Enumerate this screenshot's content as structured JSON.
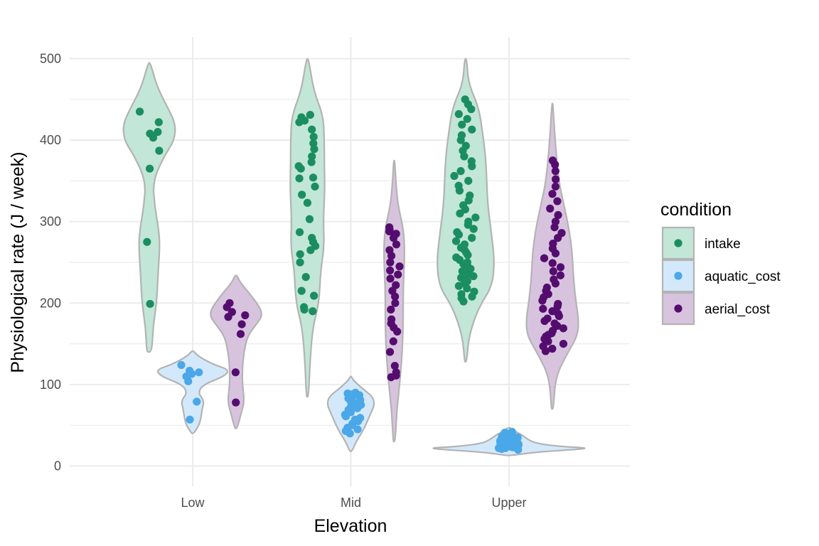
{
  "chart_data": {
    "type": "violin",
    "xlabel": "Elevation",
    "ylabel": "Physiological rate (J / week)",
    "categories": [
      "Low",
      "Mid",
      "Upper"
    ],
    "ylim": [
      0,
      525
    ],
    "yticks": [
      0,
      100,
      200,
      300,
      400,
      500
    ],
    "grid": true,
    "legend": {
      "title": "condition",
      "position": "right",
      "entries": [
        "intake",
        "aquatic_cost",
        "aerial_cost"
      ]
    },
    "colors": {
      "intake": "#1b8e61",
      "aquatic_cost": "#4aa7e8",
      "aerial_cost": "#540d6e",
      "intake_fill": "#c2e6d7",
      "aquatic_cost_fill": "#d3e9fb",
      "aerial_cost_fill": "#d8c3df",
      "outline": "#b3b3b3"
    },
    "series": [
      {
        "name": "intake",
        "groups": [
          {
            "category": "Low",
            "range": [
              140,
              495
            ],
            "density": [
              [
                140,
                0.05
              ],
              [
                170,
                0.07
              ],
              [
                200,
                0.14
              ],
              [
                240,
                0.17
              ],
              [
                270,
                0.2
              ],
              [
                290,
                0.18
              ],
              [
                320,
                0.1
              ],
              [
                350,
                0.07
              ],
              [
                380,
                0.28
              ],
              [
                400,
                0.48
              ],
              [
                420,
                0.5
              ],
              [
                440,
                0.35
              ],
              [
                465,
                0.15
              ],
              [
                495,
                0.02
              ]
            ],
            "points": [
              199,
              275,
              365,
              387,
              403,
              408,
              410,
              422,
              435
            ]
          },
          {
            "category": "Mid",
            "range": [
              85,
              500
            ],
            "density": [
              [
                85,
                0.02
              ],
              [
                130,
                0.05
              ],
              [
                170,
                0.1
              ],
              [
                200,
                0.22
              ],
              [
                240,
                0.25
              ],
              [
                270,
                0.32
              ],
              [
                300,
                0.3
              ],
              [
                340,
                0.33
              ],
              [
                370,
                0.32
              ],
              [
                400,
                0.32
              ],
              [
                430,
                0.3
              ],
              [
                460,
                0.12
              ],
              [
                500,
                0.02
              ]
            ],
            "points": [
              190,
              192,
              195,
              209,
              215,
              232,
              250,
              260,
              265,
              270,
              275,
              280,
              287,
              303,
              323,
              333,
              343,
              353,
              354,
              365,
              368,
              373,
              380,
              389,
              396,
              404,
              413,
              422,
              424,
              428,
              431
            ]
          },
          {
            "category": "Upper",
            "range": [
              128,
              500
            ],
            "density": [
              [
                128,
                0.02
              ],
              [
                160,
                0.06
              ],
              [
                195,
                0.25
              ],
              [
                220,
                0.5
              ],
              [
                250,
                0.55
              ],
              [
                280,
                0.5
              ],
              [
                320,
                0.42
              ],
              [
                350,
                0.4
              ],
              [
                380,
                0.38
              ],
              [
                410,
                0.32
              ],
              [
                440,
                0.25
              ],
              [
                470,
                0.05
              ],
              [
                500,
                0.02
              ]
            ],
            "points": [
              202,
              206,
              208,
              211,
              214,
              218,
              221,
              224,
              227,
              229,
              231,
              233,
              236,
              239,
              242,
              245,
              248,
              250,
              253,
              256,
              259,
              262,
              265,
              268,
              272,
              276,
              280,
              284,
              287,
              291,
              296,
              300,
              305,
              310,
              315,
              320,
              326,
              332,
              338,
              344,
              350,
              356,
              362,
              368,
              374,
              380,
              387,
              393,
              400,
              406,
              413,
              419,
              426,
              432,
              438,
              444,
              450
            ]
          }
        ]
      },
      {
        "name": "aquatic_cost",
        "groups": [
          {
            "category": "Low",
            "range": [
              40,
              141
            ],
            "density": [
              [
                40,
                0.02
              ],
              [
                50,
                0.12
              ],
              [
                60,
                0.16
              ],
              [
                70,
                0.18
              ],
              [
                80,
                0.22
              ],
              [
                90,
                0.1
              ],
              [
                100,
                0.2
              ],
              [
                110,
                0.6
              ],
              [
                118,
                0.7
              ],
              [
                125,
                0.38
              ],
              [
                135,
                0.1
              ],
              [
                141,
                0.02
              ]
            ],
            "points": [
              57,
              79,
              104,
              110,
              113,
              115,
              117,
              124
            ]
          },
          {
            "category": "Mid",
            "range": [
              18,
              110
            ],
            "density": [
              [
                18,
                0.02
              ],
              [
                30,
                0.1
              ],
              [
                40,
                0.2
              ],
              [
                50,
                0.28
              ],
              [
                65,
                0.38
              ],
              [
                75,
                0.45
              ],
              [
                85,
                0.42
              ],
              [
                95,
                0.22
              ],
              [
                105,
                0.05
              ],
              [
                110,
                0.01
              ]
            ],
            "points": [
              40,
              43,
              45,
              47,
              50,
              52,
              55,
              57,
              59,
              61,
              63,
              66,
              69,
              71,
              73,
              75,
              77,
              79,
              81,
              83,
              85,
              87,
              88,
              89,
              90
            ]
          },
          {
            "category": "Upper",
            "range": [
              13,
              47
            ],
            "density": [
              [
                13,
                0.05
              ],
              [
                17,
                0.5
              ],
              [
                20,
                1.2
              ],
              [
                22,
                1.55
              ],
              [
                24,
                0.95
              ],
              [
                28,
                0.5
              ],
              [
                33,
                0.35
              ],
              [
                38,
                0.25
              ],
              [
                43,
                0.1
              ],
              [
                47,
                0.02
              ]
            ],
            "points": [
              20,
              21,
              21,
              22,
              22,
              22,
              23,
              23,
              23,
              24,
              24,
              25,
              25,
              25,
              26,
              26,
              27,
              27,
              28,
              28,
              29,
              29,
              30,
              30,
              31,
              31,
              32,
              32,
              33,
              33,
              34,
              34,
              35,
              35,
              36,
              36,
              37,
              37,
              38,
              39,
              40,
              41,
              42
            ]
          }
        ]
      },
      {
        "name": "aerial_cost",
        "groups": [
          {
            "category": "Low",
            "range": [
              46,
              234
            ],
            "density": [
              [
                46,
                0.02
              ],
              [
                65,
                0.1
              ],
              [
                80,
                0.16
              ],
              [
                100,
                0.12
              ],
              [
                120,
                0.12
              ],
              [
                140,
                0.15
              ],
              [
                160,
                0.22
              ],
              [
                175,
                0.4
              ],
              [
                185,
                0.5
              ],
              [
                195,
                0.45
              ],
              [
                210,
                0.28
              ],
              [
                225,
                0.08
              ],
              [
                234,
                0.02
              ]
            ],
            "points": [
              78,
              115,
              162,
              174,
              183,
              185,
              189,
              195,
              200
            ]
          },
          {
            "category": "Mid",
            "range": [
              30,
              375
            ],
            "density": [
              [
                30,
                0.02
              ],
              [
                70,
                0.05
              ],
              [
                110,
                0.12
              ],
              [
                150,
                0.16
              ],
              [
                180,
                0.17
              ],
              [
                220,
                0.17
              ],
              [
                260,
                0.2
              ],
              [
                290,
                0.18
              ],
              [
                320,
                0.07
              ],
              [
                350,
                0.03
              ],
              [
                375,
                0.01
              ]
            ],
            "points": [
              109,
              111,
              115,
              123,
              140,
              153,
              165,
              170,
              175,
              180,
              192,
              200,
              208,
              215,
              222,
              230,
              235,
              240,
              245,
              250,
              258,
              265,
              272,
              280,
              285,
              288,
              290,
              293
            ]
          },
          {
            "category": "Upper",
            "range": [
              70,
              445
            ],
            "density": [
              [
                70,
                0.02
              ],
              [
                110,
                0.06
              ],
              [
                140,
                0.3
              ],
              [
                160,
                0.48
              ],
              [
                180,
                0.5
              ],
              [
                200,
                0.45
              ],
              [
                230,
                0.4
              ],
              [
                260,
                0.38
              ],
              [
                290,
                0.32
              ],
              [
                320,
                0.22
              ],
              [
                350,
                0.12
              ],
              [
                400,
                0.05
              ],
              [
                445,
                0.01
              ]
            ],
            "points": [
              141,
              144,
              147,
              150,
              153,
              156,
              159,
              161,
              163,
              166,
              169,
              172,
              175,
              178,
              181,
              184,
              187,
              190,
              193,
              196,
              199,
              203,
              207,
              211,
              215,
              219,
              224,
              229,
              234,
              239,
              244,
              249,
              255,
              261,
              267,
              273,
              280,
              286,
              293,
              300,
              308,
              316,
              325,
              334,
              343,
              352,
              362,
              370,
              375
            ]
          }
        ]
      }
    ]
  }
}
